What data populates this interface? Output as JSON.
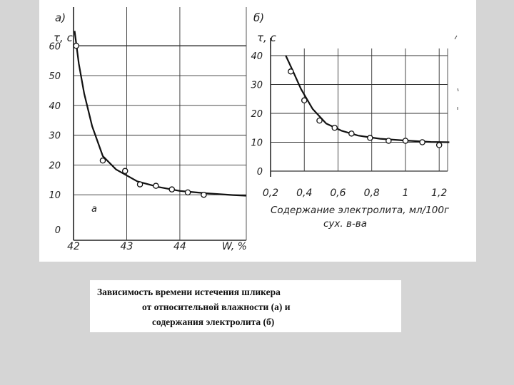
{
  "chart_data": [
    {
      "type": "line",
      "panel_label": "а)",
      "ylabel": "τ, с",
      "xlabel": "W, %",
      "x_ticks": [
        "42",
        "43",
        "44"
      ],
      "y_ticks": [
        "0",
        "10",
        "20",
        "30",
        "40",
        "50",
        "60"
      ],
      "xlim": [
        42,
        45.25
      ],
      "ylim": [
        0,
        67
      ],
      "inner_label": "а",
      "grid": true,
      "series": [
        {
          "curve": [
            [
              42.02,
              65
            ],
            [
              42.1,
              54
            ],
            [
              42.2,
              44
            ],
            [
              42.35,
              33
            ],
            [
              42.55,
              23
            ],
            [
              42.8,
              18.5
            ],
            [
              43.2,
              14.5
            ],
            [
              43.6,
              12.6
            ],
            [
              44.0,
              11.3
            ],
            [
              44.5,
              10.5
            ],
            [
              45.0,
              9.9
            ],
            [
              45.25,
              9.7
            ]
          ],
          "points": [
            [
              42.05,
              60
            ],
            [
              42.55,
              21.5
            ],
            [
              42.97,
              18
            ],
            [
              43.25,
              13.5
            ],
            [
              43.55,
              13
            ],
            [
              43.85,
              11.8
            ],
            [
              44.15,
              10.8
            ],
            [
              44.45,
              10
            ]
          ]
        }
      ]
    },
    {
      "type": "line",
      "panel_label": "б)",
      "ylabel": "τ, с",
      "xlabel": "Содержание электролита, мл/100г сух. в-ва",
      "x_ticks": [
        "0,2",
        "0,4",
        "0,6",
        "0,8",
        "1",
        "1,2"
      ],
      "y_ticks": [
        "0",
        "10",
        "20",
        "30",
        "40"
      ],
      "xlim": [
        0.2,
        1.25
      ],
      "ylim": [
        0,
        40
      ],
      "grid": true,
      "series": [
        {
          "curve": [
            [
              0.29,
              40
            ],
            [
              0.33,
              35
            ],
            [
              0.38,
              28.5
            ],
            [
              0.45,
              21.5
            ],
            [
              0.53,
              16.5
            ],
            [
              0.62,
              14
            ],
            [
              0.72,
              12.3
            ],
            [
              0.85,
              11.2
            ],
            [
              1.0,
              10.6
            ],
            [
              1.15,
              10.1
            ],
            [
              1.26,
              10
            ]
          ],
          "points": [
            [
              0.32,
              34.5
            ],
            [
              0.4,
              24.5
            ],
            [
              0.49,
              17.5
            ],
            [
              0.58,
              15
            ],
            [
              0.68,
              13
            ],
            [
              0.79,
              11.5
            ],
            [
              0.9,
              10.5
            ],
            [
              1.0,
              10.5
            ],
            [
              1.1,
              10
            ],
            [
              1.2,
              9
            ]
          ]
        }
      ]
    }
  ],
  "caption": {
    "line1": "Зависимость времени истечения шликера",
    "line2": "от относительной влажности (а) и",
    "line3": "содержания электролита (б)"
  }
}
